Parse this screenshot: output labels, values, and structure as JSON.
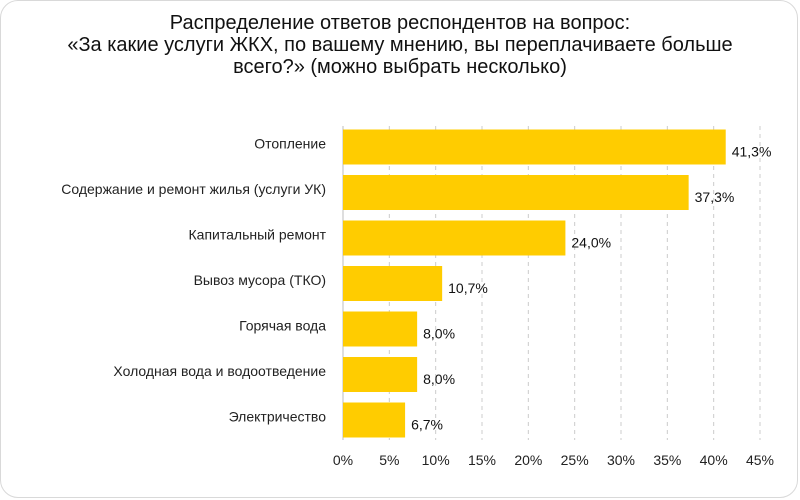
{
  "chart_data": {
    "type": "bar",
    "orientation": "horizontal",
    "title_lines": [
      "Распределение ответов респондентов на вопрос:",
      "«За какие услуги ЖКХ, по вашему мнению, вы переплачиваете больше",
      "всего?» (можно выбрать несколько)"
    ],
    "categories": [
      "Отопление",
      "Содержание и ремонт жилья (услуги УК)",
      "Капитальный ремонт",
      "Вывоз мусора (ТКО)",
      "Горячая вода",
      "Холодная вода и водоотведение",
      "Электричество"
    ],
    "values": [
      41.3,
      37.3,
      24.0,
      10.7,
      8.0,
      8.0,
      6.7
    ],
    "value_labels": [
      "41,3%",
      "37,3%",
      "24,0%",
      "10,7%",
      "8,0%",
      "8,0%",
      "6,7%"
    ],
    "xlim": [
      0,
      45
    ],
    "xticks": [
      0,
      5,
      10,
      15,
      20,
      25,
      30,
      35,
      40,
      45
    ],
    "xtick_labels": [
      "0%",
      "5%",
      "10%",
      "15%",
      "20%",
      "25%",
      "30%",
      "35%",
      "40%",
      "45%"
    ],
    "grid": "vertical dashed",
    "bar_color": "#ffcc00",
    "grid_color": "#cccccc"
  }
}
